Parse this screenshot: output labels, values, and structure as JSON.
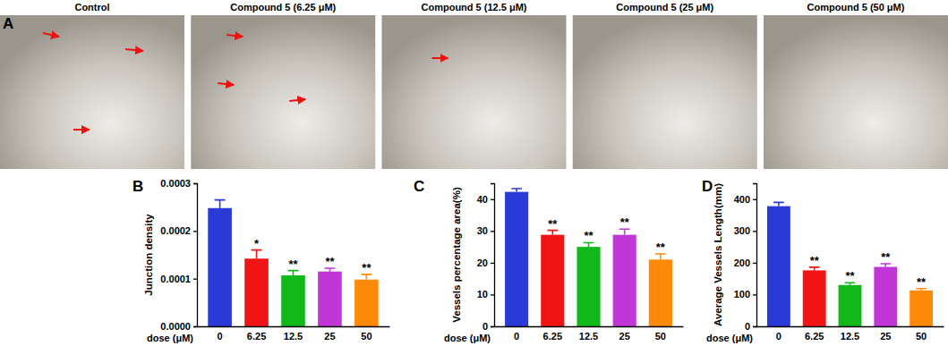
{
  "panel_a": {
    "label": "A",
    "images": [
      {
        "title": "Control"
      },
      {
        "title": "Compound 5 (6.25 μM)"
      },
      {
        "title": "Compound 5 (12.5 μM)"
      },
      {
        "title": "Compound 5 (25 μM)"
      },
      {
        "title": "Compound 5 (50 μM)"
      }
    ]
  },
  "chart_data": [
    {
      "type": "bar",
      "panel_label": "B",
      "x_label": "dose (μM)",
      "y_label": "Junction density",
      "categories": [
        "0",
        "6.25",
        "12.5",
        "25",
        "50"
      ],
      "values": [
        0.000248,
        0.000142,
        0.000107,
        0.000115,
        9.8e-05
      ],
      "errors": [
        1.7e-05,
        1.8e-05,
        1e-05,
        7e-06,
        1.1e-05
      ],
      "significance": [
        null,
        "*",
        "**",
        "**",
        "**"
      ],
      "colors": [
        "#2a3ad6",
        "#f01414",
        "#12b81a",
        "#c036d6",
        "#ff8a0a"
      ],
      "ylim": [
        0,
        0.0003
      ],
      "yticks": [
        {
          "value": 0,
          "label": "0.0000"
        },
        {
          "value": 0.0001,
          "label": "0.0001"
        },
        {
          "value": 0.0002,
          "label": "0.0002"
        },
        {
          "value": 0.0003,
          "label": "0.0003"
        }
      ]
    },
    {
      "type": "bar",
      "panel_label": "C",
      "x_label": "dose (μM)",
      "y_label": "Vessels percentage area(%)",
      "categories": [
        "0",
        "6.25",
        "12.5",
        "25",
        "50"
      ],
      "values": [
        42.3,
        28.8,
        25.0,
        28.8,
        21.0
      ],
      "errors": [
        1.0,
        1.4,
        1.3,
        1.8,
        1.8
      ],
      "significance": [
        null,
        "**",
        "**",
        "**",
        "**"
      ],
      "colors": [
        "#2a3ad6",
        "#f01414",
        "#12b81a",
        "#c036d6",
        "#ff8a0a"
      ],
      "ylim": [
        0,
        45
      ],
      "yticks": [
        0,
        10,
        20,
        30,
        40
      ]
    },
    {
      "type": "bar",
      "panel_label": "D",
      "x_label": "dose (μM)",
      "y_label": "Average Vessels Length(mm)",
      "categories": [
        "0",
        "6.25",
        "12.5",
        "25",
        "50"
      ],
      "values": [
        378,
        176,
        130,
        187,
        113
      ],
      "errors": [
        12,
        10,
        7,
        10,
        6
      ],
      "significance": [
        null,
        "**",
        "**",
        "**",
        "**"
      ],
      "colors": [
        "#2a3ad6",
        "#f01414",
        "#12b81a",
        "#c036d6",
        "#ff8a0a"
      ],
      "ylim": [
        0,
        450
      ],
      "yticks": [
        0,
        100,
        200,
        300,
        400
      ]
    }
  ]
}
